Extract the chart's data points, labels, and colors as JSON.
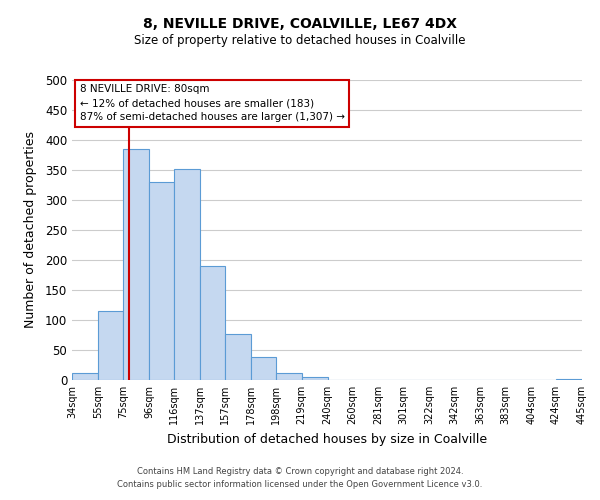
{
  "title": "8, NEVILLE DRIVE, COALVILLE, LE67 4DX",
  "subtitle": "Size of property relative to detached houses in Coalville",
  "xlabel": "Distribution of detached houses by size in Coalville",
  "ylabel": "Number of detached properties",
  "bar_edges": [
    34,
    55,
    75,
    96,
    116,
    137,
    157,
    178,
    198,
    219,
    240,
    260,
    281,
    301,
    322,
    342,
    363,
    383,
    404,
    424,
    445
  ],
  "bar_heights": [
    12,
    115,
    385,
    330,
    352,
    190,
    77,
    38,
    12,
    5,
    0,
    0,
    0,
    0,
    0,
    0,
    0,
    0,
    0,
    2
  ],
  "bar_color": "#c5d8f0",
  "bar_edge_color": "#5b9bd5",
  "vline_x": 80,
  "vline_color": "#cc0000",
  "ylim": [
    0,
    500
  ],
  "xlim": [
    34,
    445
  ],
  "tick_labels": [
    "34sqm",
    "55sqm",
    "75sqm",
    "96sqm",
    "116sqm",
    "137sqm",
    "157sqm",
    "178sqm",
    "198sqm",
    "219sqm",
    "240sqm",
    "260sqm",
    "281sqm",
    "301sqm",
    "322sqm",
    "342sqm",
    "363sqm",
    "383sqm",
    "404sqm",
    "424sqm",
    "445sqm"
  ],
  "annotation_title": "8 NEVILLE DRIVE: 80sqm",
  "annotation_line1": "← 12% of detached houses are smaller (183)",
  "annotation_line2": "87% of semi-detached houses are larger (1,307) →",
  "footnote1": "Contains HM Land Registry data © Crown copyright and database right 2024.",
  "footnote2": "Contains public sector information licensed under the Open Government Licence v3.0.",
  "background_color": "#ffffff",
  "grid_color": "#cccccc"
}
